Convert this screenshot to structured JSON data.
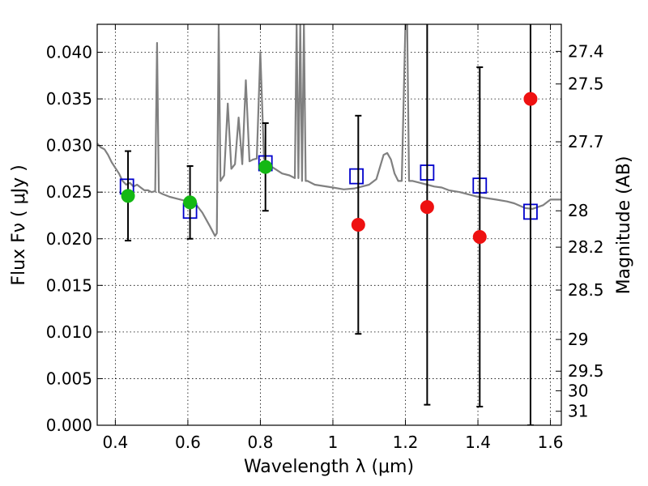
{
  "chart_data": {
    "type": "scatter",
    "xlabel": "Wavelength  λ (μm)",
    "ylabel": "Flux  Fν  ( μJy )",
    "ylabel_right": "Magnitude (AB)",
    "xlim": [
      0.35,
      1.63
    ],
    "ylim": [
      0.0,
      0.043
    ],
    "grid": true,
    "x_ticks": [
      0.4,
      0.6,
      0.8,
      1.0,
      1.2,
      1.4,
      1.6
    ],
    "x_tick_labels": [
      "0.4",
      "0.6",
      "0.8",
      "1",
      "1.2",
      "1.4",
      "1.6"
    ],
    "y_ticks": [
      0.0,
      0.005,
      0.01,
      0.015,
      0.02,
      0.025,
      0.03,
      0.035,
      0.04
    ],
    "y_tick_labels": [
      "0.000",
      "0.005",
      "0.010",
      "0.015",
      "0.020",
      "0.025",
      "0.030",
      "0.035",
      "0.040"
    ],
    "right_ticks": [
      {
        "label": "27.4",
        "flux": 0.0401
      },
      {
        "label": "27.5",
        "flux": 0.0366
      },
      {
        "label": "27.7",
        "flux": 0.0304
      },
      {
        "label": "28",
        "flux": 0.023
      },
      {
        "label": "28.2",
        "flux": 0.0191
      },
      {
        "label": "28.5",
        "flux": 0.0145
      },
      {
        "label": "29",
        "flux": 0.0092
      },
      {
        "label": "29.5",
        "flux": 0.0058
      },
      {
        "label": "30",
        "flux": 0.0037
      },
      {
        "label": "31",
        "flux": 0.0015
      }
    ],
    "series": [
      {
        "kind": "model-spectrum",
        "color": "#808080",
        "x": [
          0.35,
          0.36,
          0.37,
          0.38,
          0.39,
          0.4,
          0.41,
          0.42,
          0.43,
          0.44,
          0.45,
          0.46,
          0.47,
          0.48,
          0.49,
          0.5,
          0.51,
          0.515,
          0.52,
          0.53,
          0.55,
          0.57,
          0.6,
          0.62,
          0.64,
          0.66,
          0.675,
          0.68,
          0.685,
          0.69,
          0.7,
          0.71,
          0.72,
          0.73,
          0.74,
          0.75,
          0.76,
          0.77,
          0.78,
          0.79,
          0.8,
          0.81,
          0.82,
          0.84,
          0.86,
          0.88,
          0.895,
          0.9,
          0.905,
          0.91,
          0.915,
          0.92,
          0.925,
          0.93,
          0.95,
          1.0,
          1.03,
          1.06,
          1.08,
          1.1,
          1.12,
          1.14,
          1.15,
          1.16,
          1.17,
          1.18,
          1.19,
          1.2,
          1.205,
          1.21,
          1.22,
          1.24,
          1.26,
          1.28,
          1.3,
          1.32,
          1.35,
          1.38,
          1.4,
          1.45,
          1.48,
          1.5,
          1.53,
          1.55,
          1.58,
          1.6,
          1.63
        ],
        "y": [
          0.0302,
          0.0298,
          0.0296,
          0.029,
          0.0282,
          0.0276,
          0.027,
          0.0262,
          0.0258,
          0.026,
          0.0256,
          0.0258,
          0.0255,
          0.0252,
          0.0252,
          0.025,
          0.0251,
          0.041,
          0.025,
          0.0248,
          0.0245,
          0.0243,
          0.024,
          0.0238,
          0.0228,
          0.0214,
          0.0203,
          0.0206,
          0.043,
          0.0262,
          0.0268,
          0.0345,
          0.0275,
          0.028,
          0.033,
          0.028,
          0.037,
          0.0283,
          0.0285,
          0.0286,
          0.04,
          0.0286,
          0.028,
          0.0275,
          0.027,
          0.0268,
          0.0265,
          0.043,
          0.0265,
          0.043,
          0.0262,
          0.043,
          0.0262,
          0.0262,
          0.0258,
          0.0255,
          0.0253,
          0.0254,
          0.0256,
          0.0258,
          0.0264,
          0.029,
          0.0292,
          0.0285,
          0.027,
          0.0262,
          0.0262,
          0.043,
          0.043,
          0.0262,
          0.0262,
          0.026,
          0.0258,
          0.0256,
          0.0255,
          0.0252,
          0.025,
          0.0247,
          0.0245,
          0.0242,
          0.024,
          0.0238,
          0.0233,
          0.0232,
          0.0236,
          0.0242,
          0.0242
        ]
      },
      {
        "kind": "model-photometry",
        "marker": "open-square",
        "color": "#0000cc",
        "x": [
          0.432,
          0.606,
          0.814,
          1.065,
          1.26,
          1.405,
          1.545
        ],
        "y": [
          0.0256,
          0.023,
          0.0281,
          0.0267,
          0.0271,
          0.0257,
          0.0229
        ]
      },
      {
        "kind": "detections",
        "marker": "filled-circle",
        "color": "#14b814",
        "x": [
          0.435,
          0.606,
          0.814
        ],
        "y": [
          0.0246,
          0.0239,
          0.0277
        ],
        "yerr": [
          0.0048,
          0.0039,
          0.0047
        ]
      },
      {
        "kind": "upper-limits",
        "marker": "filled-circle",
        "color": "#ee1111",
        "x": [
          1.07,
          1.26,
          1.405,
          1.545
        ],
        "y": [
          0.0215,
          0.0234,
          0.0202,
          0.035
        ],
        "yerr": [
          0.0117,
          0.0212,
          0.0182,
          0.035
        ]
      }
    ]
  }
}
